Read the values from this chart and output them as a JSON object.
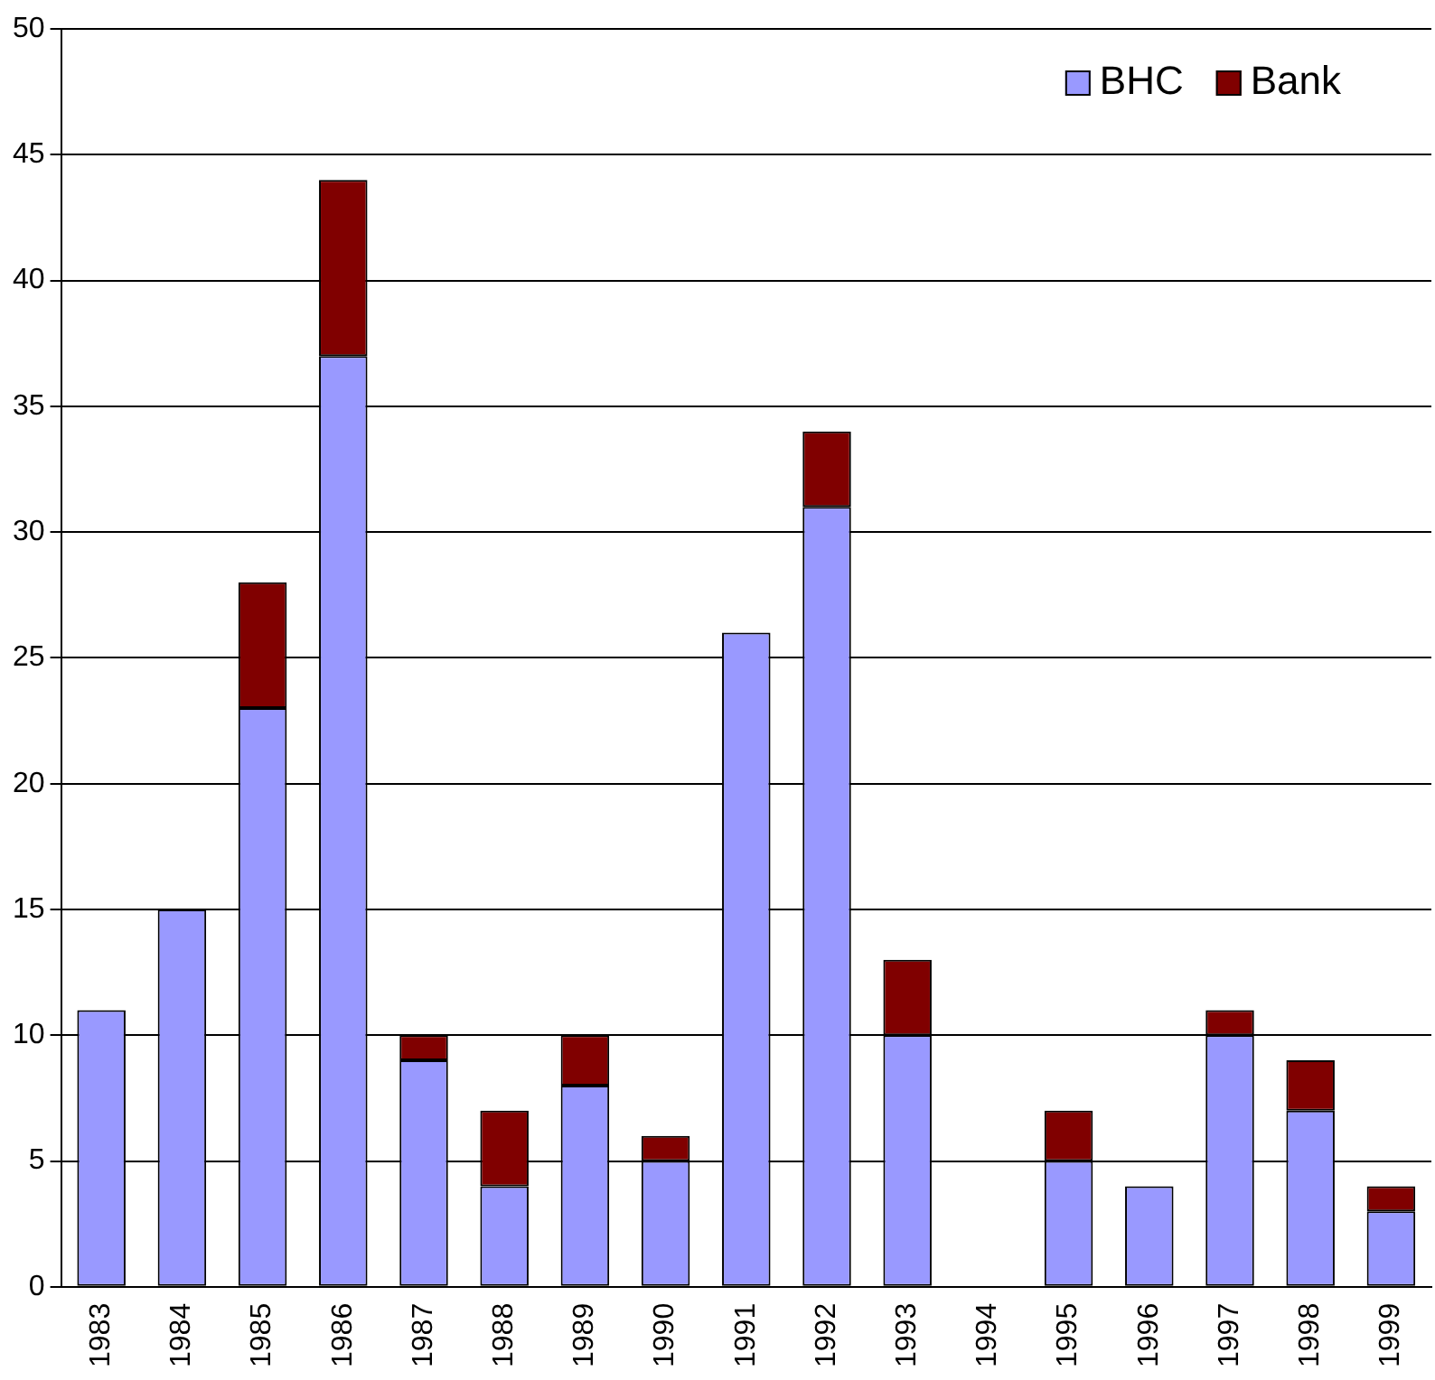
{
  "chart_data": {
    "type": "bar",
    "stacked": true,
    "categories": [
      "1983",
      "1984",
      "1985",
      "1986",
      "1987",
      "1988",
      "1989",
      "1990",
      "1991",
      "1992",
      "1993",
      "1994",
      "1995",
      "1996",
      "1997",
      "1998",
      "1999"
    ],
    "series": [
      {
        "name": "BHC",
        "color": "#9999ff",
        "values": [
          11,
          15,
          23,
          37,
          9,
          4,
          8,
          5,
          26,
          31,
          10,
          0,
          5,
          4,
          10,
          7,
          3
        ]
      },
      {
        "name": "Bank",
        "color": "#800000",
        "values": [
          0,
          0,
          5,
          7,
          1,
          3,
          2,
          1,
          0,
          3,
          3,
          0,
          2,
          0,
          1,
          2,
          1
        ]
      }
    ],
    "ylim": [
      0,
      50
    ],
    "yticks": [
      0,
      5,
      10,
      15,
      20,
      25,
      30,
      35,
      40,
      45,
      50
    ],
    "grid": "y",
    "legend": "top right"
  }
}
